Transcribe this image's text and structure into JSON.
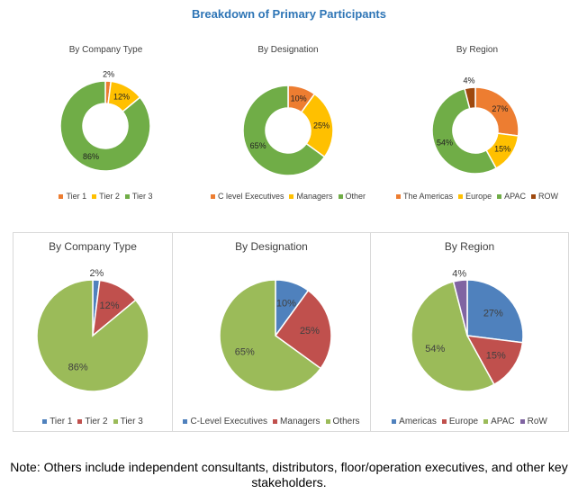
{
  "title": "Breakdown of Primary Participants",
  "chart_data": [
    {
      "type": "pie",
      "style": "donut",
      "title": "By Company Type",
      "categories": [
        "Tier 1",
        "Tier 2",
        "Tier 3"
      ],
      "values": [
        2,
        12,
        86
      ],
      "labels": [
        "2%",
        "12%",
        "86%"
      ],
      "colors": [
        "#ED7D31",
        "#FFC000",
        "#70AD47"
      ],
      "legend": "bottom"
    },
    {
      "type": "pie",
      "style": "donut",
      "title": "By Designation",
      "categories": [
        "C level Executives",
        "Managers",
        "Other"
      ],
      "values": [
        10,
        25,
        65
      ],
      "labels": [
        "10%",
        "25%",
        "65%"
      ],
      "colors": [
        "#ED7D31",
        "#FFC000",
        "#70AD47"
      ],
      "legend": "bottom"
    },
    {
      "type": "pie",
      "style": "donut",
      "title": "By Region",
      "categories": [
        "The Americas",
        "Europe",
        "APAC",
        "ROW"
      ],
      "values": [
        27,
        15,
        54,
        4
      ],
      "labels": [
        "27%",
        "15%",
        "54%",
        "4%"
      ],
      "colors": [
        "#ED7D31",
        "#FFC000",
        "#70AD47",
        "#9E480E"
      ],
      "legend": "bottom"
    },
    {
      "type": "pie",
      "style": "pie",
      "title": "By Company Type",
      "categories": [
        "Tier 1",
        "Tier 2",
        "Tier 3"
      ],
      "values": [
        2,
        12,
        86
      ],
      "labels": [
        "2%",
        "12%",
        "86%"
      ],
      "colors": [
        "#4F81BD",
        "#C0504D",
        "#9BBB59"
      ],
      "legend": "bottom"
    },
    {
      "type": "pie",
      "style": "pie",
      "title": "By Designation",
      "categories": [
        "C-Level Executives",
        "Managers",
        "Others"
      ],
      "values": [
        10,
        25,
        65
      ],
      "labels": [
        "10%",
        "25%",
        "65%"
      ],
      "colors": [
        "#4F81BD",
        "#C0504D",
        "#9BBB59"
      ],
      "legend": "bottom"
    },
    {
      "type": "pie",
      "style": "pie",
      "title": "By Region",
      "categories": [
        "Americas",
        "Europe",
        "APAC",
        "RoW"
      ],
      "values": [
        27,
        15,
        54,
        4
      ],
      "labels": [
        "27%",
        "15%",
        "54%",
        "4%"
      ],
      "colors": [
        "#4F81BD",
        "#C0504D",
        "#9BBB59",
        "#8064A2"
      ],
      "legend": "bottom"
    }
  ],
  "note": "Note: Others include independent consultants, distributors, floor/operation executives, and other key stakeholders."
}
